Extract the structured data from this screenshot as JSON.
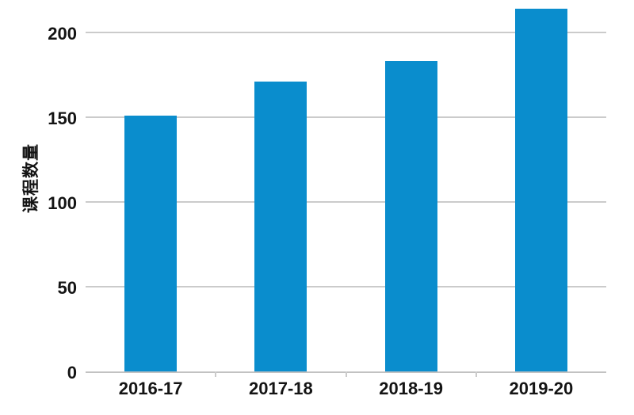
{
  "chart_data": {
    "type": "bar",
    "title": "",
    "categories": [
      "2016-17",
      "2017-18",
      "2018-19",
      "2019-20"
    ],
    "values": [
      151,
      171,
      183,
      214
    ],
    "xlabel": "",
    "ylabel": "课程数量",
    "yticks": [
      0,
      50,
      100,
      150,
      200
    ],
    "ylim": [
      0,
      219
    ],
    "grid": true,
    "legend": false,
    "colors": {
      "bar": "#0a8dcd",
      "gridline": "#cbcbcb",
      "axis_line": "#c2c2c2",
      "tick_text": "#141414"
    }
  }
}
